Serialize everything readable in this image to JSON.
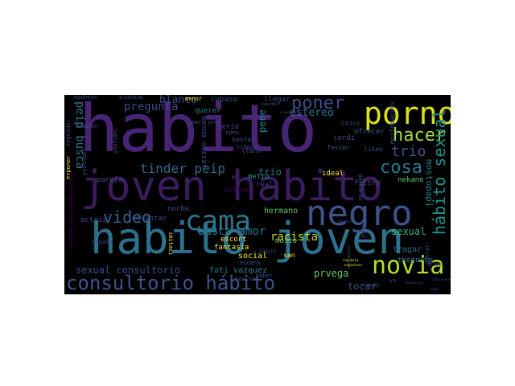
{
  "colors": {
    "background": "#000000",
    "page": "#ffffff",
    "palette": [
      "#440154",
      "#482475",
      "#3b528b",
      "#2c728e",
      "#21918c",
      "#28ae80",
      "#5ec962",
      "#addc30",
      "#fde725"
    ]
  },
  "words": [
    {
      "text": "habito",
      "color": "#482475"
    },
    {
      "text": "joven habito",
      "color": "#3b1c5f"
    },
    {
      "text": "habito joven",
      "color": "#2c728e"
    },
    {
      "text": "negro",
      "color": "#3b528b"
    },
    {
      "text": "porno",
      "color": "#d8e219"
    },
    {
      "text": "cama",
      "color": "#2a788e"
    },
    {
      "text": "novia",
      "color": "#b5de2b"
    },
    {
      "text": "hacer",
      "color": "#a2da37"
    },
    {
      "text": "consultorio hábito",
      "color": "#3b528b"
    },
    {
      "text": "poner",
      "color": "#3e4a89"
    },
    {
      "text": "hábito sexual",
      "color": "#21918c"
    },
    {
      "text": "cosa",
      "color": "#2a788e"
    },
    {
      "text": "video",
      "color": "#33638d"
    },
    {
      "text": "trio",
      "color": "#3b528b"
    },
    {
      "text": "busca amor",
      "color": "#2c728e"
    },
    {
      "text": "tinder peip",
      "color": "#31688e"
    },
    {
      "text": "pregunta",
      "color": "#3e4a89"
    },
    {
      "text": "peip busca",
      "color": "#2c728e"
    },
    {
      "text": "racista",
      "color": "#b5de2b"
    },
    {
      "text": "sexual consultorio",
      "color": "#3e4a89"
    },
    {
      "text": "blanco",
      "color": "#3e4a89"
    },
    {
      "text": "estereo",
      "color": "#2c728e"
    },
    {
      "text": "sexual",
      "color": "#35b779"
    },
    {
      "text": "mostopapi",
      "color": "#2a788e"
    },
    {
      "text": "pene",
      "color": "#26828e"
    },
    {
      "text": "trio",
      "color": "#2a788e"
    },
    {
      "text": "prvega",
      "color": "#5ec962"
    },
    {
      "text": "tocar",
      "color": "#3e4a89"
    },
    {
      "text": "fati vazquez",
      "color": "#26828e"
    },
    {
      "text": "social",
      "color": "#fde725"
    },
    {
      "text": "tragar",
      "color": "#31688e"
    },
    {
      "text": "thegrefg",
      "color": "#2a788e"
    },
    {
      "text": "hermano",
      "color": "#5ec962"
    },
    {
      "text": "mosto",
      "color": "#6ece58"
    },
    {
      "text": "escort",
      "color": "#fde725"
    },
    {
      "text": "fantasia",
      "color": "#fde725"
    },
    {
      "text": "noche",
      "color": "#3e4a89"
    },
    {
      "text": "encantar",
      "color": "#3e4a89"
    },
    {
      "text": "actriz",
      "color": "#3e4a89"
    },
    {
      "text": "pareja",
      "color": "#3e4a89"
    },
    {
      "text": "ideal",
      "color": "#fde725"
    },
    {
      "text": "filtro",
      "color": "#3b528b"
    },
    {
      "text": "ofrecer",
      "color": "#33638d"
    },
    {
      "text": "nekane",
      "color": "#5ec962"
    },
    {
      "text": "likes",
      "color": "#3e4a89"
    },
    {
      "text": "querer",
      "color": "#2a788e"
    },
    {
      "text": "cubana",
      "color": "#3e4a89"
    },
    {
      "text": "menor",
      "color": "#fde725"
    },
    {
      "text": "llegar",
      "color": "#3e4a89"
    },
    {
      "text": "chico",
      "color": "#3e4a89"
    },
    {
      "text": "jordi",
      "color": "#3e4a89"
    },
    {
      "text": "fesser",
      "color": "#3e4a89"
    },
    {
      "text": "hentai",
      "color": "#3e4a89"
    },
    {
      "text": "llano",
      "color": "#3e4a89"
    },
    {
      "text": "serio",
      "color": "#3e4a89"
    },
    {
      "text": "roma",
      "color": "#3e4a89"
    },
    {
      "text": "metro",
      "color": "#21918c"
    },
    {
      "text": "real",
      "color": "#3e4a89"
    },
    {
      "text": "san",
      "color": "#fde725"
    },
    {
      "text": "madness",
      "color": "#3e4a89"
    },
    {
      "text": "blondie",
      "color": "#3e4a89"
    },
    {
      "text": "youtube",
      "color": "#3e4a89"
    },
    {
      "text": "youtuber",
      "color": "#3e4a89"
    },
    {
      "text": "exponer",
      "color": "#fde725"
    },
    {
      "text": "seguidor",
      "color": "#3e4a89"
    },
    {
      "text": "españa",
      "color": "#3e4a89"
    },
    {
      "text": "marina",
      "color": "#3e4a89"
    },
    {
      "text": "escena",
      "color": "#3e4a89"
    },
    {
      "text": "haber",
      "color": "#3e4a89"
    },
    {
      "text": "gustar",
      "color": "#3e4a89"
    },
    {
      "text": "blon",
      "color": "#3e4a89"
    },
    {
      "text": "vs",
      "color": "#3e4a89"
    },
    {
      "text": "condi",
      "color": "#3e4a89"
    },
    {
      "text": "coscu",
      "color": "#3e4a89"
    },
    {
      "text": "gallardo",
      "color": "#3e4a89"
    },
    {
      "text": "mostopapitv",
      "color": "#3e4a89"
    },
    {
      "text": "benna wizzar",
      "color": "#3e4a89"
    },
    {
      "text": "tragos",
      "color": "#3e4a89"
    },
    {
      "text": "cuentale",
      "color": "#fde725"
    },
    {
      "text": "asesoramiento hábito",
      "color": "#440154"
    },
    {
      "text": "lógico",
      "color": "#3e4a89"
    },
    {
      "text": "imitaci",
      "color": "#fde725"
    },
    {
      "text": "eiliar",
      "color": "#440154"
    },
    {
      "text": "él",
      "color": "#3e4a89"
    },
    {
      "text": "comer",
      "color": "#3e4a89"
    },
    {
      "text": "yers",
      "color": "#3e4a89"
    },
    {
      "text": "exponer",
      "color": "#3e4a89"
    },
    {
      "text": "ocupados",
      "color": "#3e4a89"
    },
    {
      "text": "dar",
      "color": "#3e4a89"
    },
    {
      "text": "subido",
      "color": "#3e4a89"
    },
    {
      "text": "gustar",
      "color": "#3e4a89"
    },
    {
      "text": "respuestas",
      "color": "#3e4a89"
    },
    {
      "text": "espantoso",
      "color": "#fde725"
    },
    {
      "text": "denunciar",
      "color": "#3e4a89"
    },
    {
      "text": "interviene",
      "color": "#3e4a89"
    },
    {
      "text": "subir",
      "color": "#3e4a89"
    }
  ]
}
